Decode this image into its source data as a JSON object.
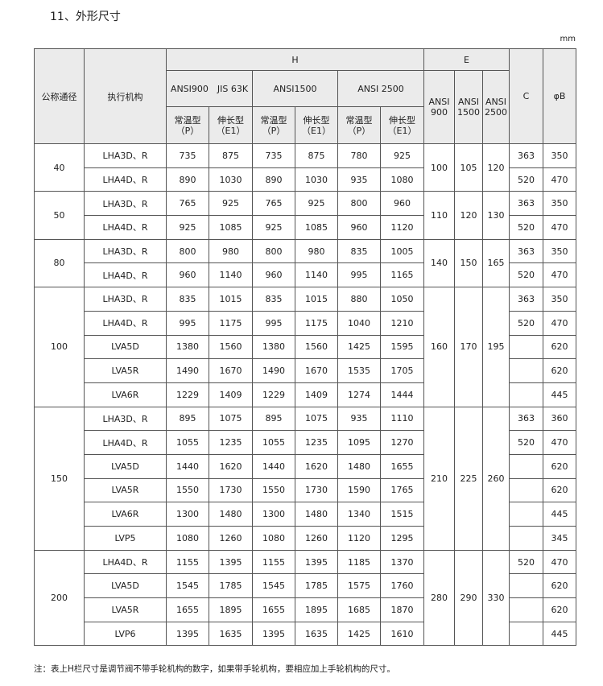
{
  "title": "11、外形尺寸",
  "unit": "mm",
  "header": {
    "size": "公称通径",
    "actuator": "执行机构",
    "H": "H",
    "E": "E",
    "C": "C",
    "B": "φB",
    "h_groups": [
      "ANSI900　JIS 63K",
      "ANSI1500",
      "ANSI 2500"
    ],
    "h_sub": [
      {
        "name": "常温型",
        "code": "（P）"
      },
      {
        "name": "伸长型",
        "code": "（E1）"
      },
      {
        "name": "常温型",
        "code": "（P）"
      },
      {
        "name": "伸长型",
        "code": "（E1）"
      },
      {
        "name": "常温型",
        "code": "（P）"
      },
      {
        "name": "伸长型",
        "code": "（E1）"
      }
    ],
    "e_sub": [
      [
        "ANSI",
        "900"
      ],
      [
        "ANSI",
        "1500"
      ],
      [
        "ANSI",
        "2500"
      ]
    ]
  },
  "groups": [
    {
      "size": "40",
      "E": [
        "100",
        "105",
        "120"
      ],
      "rows": [
        {
          "mech": "LHA3D、R",
          "H": [
            "735",
            "875",
            "735",
            "875",
            "780",
            "925"
          ],
          "C": "363",
          "B": "350"
        },
        {
          "mech": "LHA4D、R",
          "H": [
            "890",
            "1030",
            "890",
            "1030",
            "935",
            "1080"
          ],
          "C": "520",
          "B": "470"
        }
      ]
    },
    {
      "size": "50",
      "E": [
        "110",
        "120",
        "130"
      ],
      "rows": [
        {
          "mech": "LHA3D、R",
          "H": [
            "765",
            "925",
            "765",
            "925",
            "800",
            "960"
          ],
          "C": "363",
          "B": "350"
        },
        {
          "mech": "LHA4D、R",
          "H": [
            "925",
            "1085",
            "925",
            "1085",
            "960",
            "1120"
          ],
          "C": "520",
          "B": "470"
        }
      ]
    },
    {
      "size": "80",
      "E": [
        "140",
        "150",
        "165"
      ],
      "rows": [
        {
          "mech": "LHA3D、R",
          "H": [
            "800",
            "980",
            "800",
            "980",
            "835",
            "1005"
          ],
          "C": "363",
          "B": "350"
        },
        {
          "mech": "LHA4D、R",
          "H": [
            "960",
            "1140",
            "960",
            "1140",
            "995",
            "1165"
          ],
          "C": "520",
          "B": "470"
        }
      ]
    },
    {
      "size": "100",
      "E": [
        "160",
        "170",
        "195"
      ],
      "rows": [
        {
          "mech": "LHA3D、R",
          "H": [
            "835",
            "1015",
            "835",
            "1015",
            "880",
            "1050"
          ],
          "C": "363",
          "B": "350"
        },
        {
          "mech": "LHA4D、R",
          "H": [
            "995",
            "1175",
            "995",
            "1175",
            "1040",
            "1210"
          ],
          "C": "520",
          "B": "470"
        },
        {
          "mech": "LVA5D",
          "H": [
            "1380",
            "1560",
            "1380",
            "1560",
            "1425",
            "1595"
          ],
          "C": "",
          "B": "620"
        },
        {
          "mech": "LVA5R",
          "H": [
            "1490",
            "1670",
            "1490",
            "1670",
            "1535",
            "1705"
          ],
          "C": "",
          "B": "620"
        },
        {
          "mech": "LVA6R",
          "H": [
            "1229",
            "1409",
            "1229",
            "1409",
            "1274",
            "1444"
          ],
          "C": "",
          "B": "445"
        }
      ]
    },
    {
      "size": "150",
      "E": [
        "210",
        "225",
        "260"
      ],
      "rows": [
        {
          "mech": "LHA3D、R",
          "H": [
            "895",
            "1075",
            "895",
            "1075",
            "935",
            "1110"
          ],
          "C": "363",
          "B": "360"
        },
        {
          "mech": "LHA4D、R",
          "H": [
            "1055",
            "1235",
            "1055",
            "1235",
            "1095",
            "1270"
          ],
          "C": "520",
          "B": "470"
        },
        {
          "mech": "LVA5D",
          "H": [
            "1440",
            "1620",
            "1440",
            "1620",
            "1480",
            "1655"
          ],
          "C": "",
          "B": "620"
        },
        {
          "mech": "LVA5R",
          "H": [
            "1550",
            "1730",
            "1550",
            "1730",
            "1590",
            "1765"
          ],
          "C": "",
          "B": "620"
        },
        {
          "mech": "LVA6R",
          "H": [
            "1300",
            "1480",
            "1300",
            "1480",
            "1340",
            "1515"
          ],
          "C": "",
          "B": "445"
        },
        {
          "mech": "LVP5",
          "H": [
            "1080",
            "1260",
            "1080",
            "1260",
            "1120",
            "1295"
          ],
          "C": "",
          "B": "345"
        }
      ]
    },
    {
      "size": "200",
      "E": [
        "280",
        "290",
        "330"
      ],
      "rows": [
        {
          "mech": "LHA4D、R",
          "H": [
            "1155",
            "1395",
            "1155",
            "1395",
            "1185",
            "1370"
          ],
          "C": "520",
          "B": "470"
        },
        {
          "mech": "LVA5D",
          "H": [
            "1545",
            "1785",
            "1545",
            "1785",
            "1575",
            "1760"
          ],
          "C": "",
          "B": "620"
        },
        {
          "mech": "LVA5R",
          "H": [
            "1655",
            "1895",
            "1655",
            "1895",
            "1685",
            "1870"
          ],
          "C": "",
          "B": "620"
        },
        {
          "mech": "LVP6",
          "H": [
            "1395",
            "1635",
            "1395",
            "1635",
            "1425",
            "1610"
          ],
          "C": "",
          "B": "445"
        }
      ]
    }
  ],
  "note": "注：表上H栏尺寸是调节阀不带手轮机构的数字，如果带手轮机构，要相应加上手轮机构的尺寸。"
}
